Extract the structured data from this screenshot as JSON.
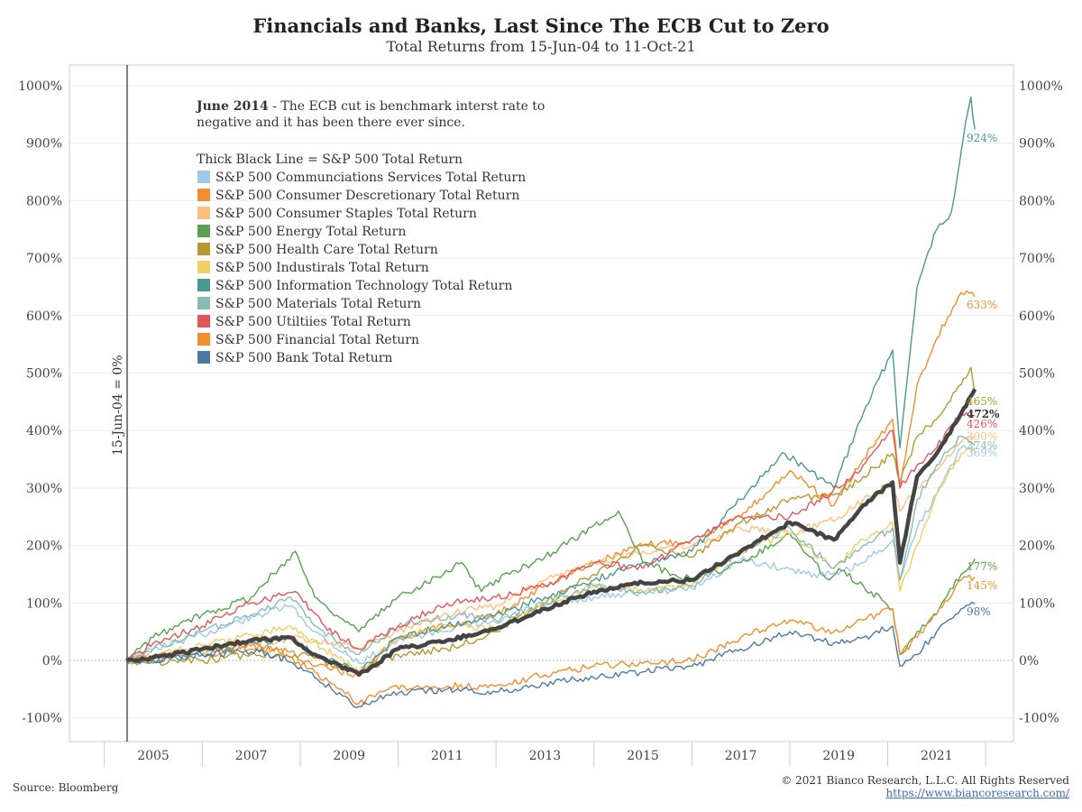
{
  "title": "Financials and Banks, Last Since The ECB Cut to Zero",
  "subtitle": "Total Returns from 15-Jun-04 to 11-Oct-21",
  "footer": {
    "source": "Source: Bloomberg",
    "copyright": "© 2021 Bianco Research, L.L.C. All Rights Reserved",
    "url": "https://www.biancoresearch.com/"
  },
  "annotation": {
    "bold": "June 2014",
    "line1": " - The ECB cut is benchmark interst rate to",
    "line2": "negative and it has been there ever since.",
    "vertical_label": "15-Jun-04 = 0%"
  },
  "legend_header": "Thick Black Line = S&P 500 Total Return",
  "chart_data": {
    "type": "line",
    "title": "Financials and Banks, Last Since The ECB Cut to Zero",
    "subtitle": "Total Returns from 15-Jun-04 to 11-Oct-21",
    "ylim": [
      -100,
      1000
    ],
    "xlim": [
      2004.0,
      2022.3
    ],
    "y_ticks": [
      -100,
      0,
      100,
      200,
      300,
      400,
      500,
      600,
      700,
      800,
      900,
      1000
    ],
    "y_tick_labels": [
      "-100%",
      "0%",
      "100%",
      "200%",
      "300%",
      "400%",
      "500%",
      "600%",
      "700%",
      "800%",
      "900%",
      "1000%"
    ],
    "x_ticks": [
      "2005",
      "2007",
      "2009",
      "2011",
      "2013",
      "2015",
      "2017",
      "2019",
      "2021"
    ],
    "x_tick_positions": [
      2005,
      2007,
      2009,
      2011,
      2013,
      2015,
      2017,
      2019,
      2021
    ],
    "grid": true,
    "legend_position": "top-left",
    "series": [
      {
        "name": "S&P 500 Communciations Services Total Return",
        "color": "#9ecae9",
        "end_label": "369%",
        "x": [
          2004.45,
          2005,
          2006,
          2007,
          2007.8,
          2008.3,
          2009.2,
          2010,
          2011.3,
          2012,
          2013,
          2014,
          2015,
          2016,
          2017,
          2017.9,
          2018.5,
          2019,
          2019.5,
          2020.1,
          2020.25,
          2020.6,
          2021,
          2021.5,
          2021.78
        ],
        "y": [
          0,
          20,
          45,
          75,
          95,
          50,
          -5,
          35,
          60,
          65,
          95,
          110,
          120,
          125,
          175,
          160,
          150,
          150,
          170,
          210,
          140,
          230,
          290,
          370,
          369
        ]
      },
      {
        "name": "S&P 500 Consumer Descretionary Total Return",
        "color": "#f28e2b",
        "end_label": "633%",
        "x": [
          2004.45,
          2005,
          2006,
          2007,
          2007.8,
          2008.3,
          2009.2,
          2010,
          2011,
          2012,
          2013,
          2014,
          2015,
          2016,
          2017,
          2018,
          2018.9,
          2019.5,
          2020.1,
          2020.25,
          2020.6,
          2021,
          2021.5,
          2021.78
        ],
        "y": [
          0,
          5,
          10,
          20,
          15,
          -10,
          -25,
          40,
          60,
          80,
          130,
          170,
          200,
          210,
          250,
          330,
          270,
          350,
          420,
          300,
          480,
          560,
          640,
          633
        ]
      },
      {
        "name": "S&P 500 Consumer Staples Total Return",
        "color": "#ffbe7d",
        "end_label": "390%",
        "x": [
          2004.45,
          2005,
          2006,
          2007,
          2008,
          2009.2,
          2010,
          2011,
          2012,
          2013,
          2014,
          2015,
          2016,
          2017,
          2018,
          2019,
          2019.5,
          2020.1,
          2020.25,
          2020.6,
          2021,
          2021.5,
          2021.78
        ],
        "y": [
          0,
          5,
          15,
          30,
          40,
          20,
          50,
          80,
          95,
          140,
          170,
          190,
          200,
          230,
          220,
          250,
          280,
          310,
          260,
          300,
          330,
          380,
          390
        ]
      },
      {
        "name": "S&P 500 Energy Total Return",
        "color": "#59a14f",
        "end_label": "177%",
        "x": [
          2004.45,
          2005,
          2006,
          2007,
          2007.9,
          2008.3,
          2009.2,
          2010,
          2011.3,
          2011.7,
          2012,
          2013,
          2014.5,
          2015,
          2016,
          2017,
          2018,
          2018.8,
          2019,
          2019.5,
          2020.1,
          2020.25,
          2020.6,
          2021,
          2021.5,
          2021.78
        ],
        "y": [
          0,
          40,
          80,
          110,
          190,
          110,
          50,
          110,
          170,
          120,
          140,
          180,
          260,
          170,
          140,
          170,
          220,
          140,
          160,
          130,
          90,
          10,
          50,
          80,
          150,
          177
        ]
      },
      {
        "name": "S&P 500 Health Care Total Return",
        "color": "#b6992d",
        "end_label": "465%",
        "x": [
          2004.45,
          2005,
          2006,
          2007,
          2008,
          2009.2,
          2010,
          2011,
          2012,
          2013,
          2014,
          2015,
          2016,
          2017,
          2018,
          2019,
          2019.5,
          2020.1,
          2020.25,
          2020.6,
          2021,
          2021.5,
          2021.7,
          2021.78
        ],
        "y": [
          0,
          -5,
          0,
          10,
          10,
          -20,
          10,
          20,
          50,
          100,
          150,
          200,
          180,
          240,
          280,
          290,
          320,
          360,
          310,
          390,
          420,
          480,
          510,
          465
        ]
      },
      {
        "name": "S&P 500 Industirals Total Return",
        "color": "#f1ce63",
        "end_label": "",
        "x": [
          2004.45,
          2005,
          2006,
          2007,
          2007.8,
          2008.5,
          2009.2,
          2010,
          2011,
          2012,
          2013,
          2014,
          2015,
          2016,
          2017,
          2018,
          2018.9,
          2019.5,
          2020.1,
          2020.25,
          2020.6,
          2021,
          2021.5,
          2021.78
        ],
        "y": [
          0,
          10,
          25,
          45,
          60,
          20,
          -20,
          40,
          60,
          55,
          100,
          130,
          120,
          130,
          190,
          220,
          160,
          210,
          240,
          120,
          200,
          290,
          360,
          370
        ]
      },
      {
        "name": "S&P 500 Information Technology Total Return",
        "color": "#499894",
        "end_label": "924%",
        "x": [
          2004.45,
          2005,
          2006,
          2007,
          2007.8,
          2008.3,
          2009.2,
          2010,
          2011,
          2012,
          2013,
          2014,
          2015,
          2016,
          2017,
          2017.9,
          2018.9,
          2019.5,
          2020.1,
          2020.25,
          2020.6,
          2021,
          2021.3,
          2021.6,
          2021.7,
          2021.78
        ],
        "y": [
          0,
          0,
          10,
          30,
          40,
          10,
          -20,
          40,
          60,
          80,
          110,
          140,
          170,
          190,
          280,
          360,
          300,
          430,
          540,
          370,
          650,
          750,
          780,
          940,
          980,
          924
        ]
      },
      {
        "name": "S&P 500 Materials Total Return",
        "color": "#86bcb6",
        "end_label": "374%",
        "x": [
          2004.45,
          2005,
          2006,
          2007,
          2007.8,
          2008.3,
          2009.2,
          2010,
          2011.3,
          2012,
          2013,
          2014,
          2015,
          2016,
          2017,
          2018,
          2018.9,
          2019.5,
          2020.1,
          2020.25,
          2020.6,
          2021,
          2021.5,
          2021.78
        ],
        "y": [
          0,
          20,
          50,
          80,
          110,
          60,
          10,
          60,
          80,
          70,
          100,
          130,
          120,
          130,
          190,
          230,
          160,
          200,
          230,
          140,
          280,
          340,
          390,
          374
        ]
      },
      {
        "name": "S&P 500 Utiltiies Total Return",
        "color": "#e15759",
        "end_label": "426%",
        "x": [
          2004.45,
          2005,
          2006,
          2007,
          2007.9,
          2008.5,
          2009.2,
          2010,
          2011,
          2012,
          2013,
          2014,
          2015,
          2016,
          2017,
          2018,
          2019,
          2019.5,
          2020.1,
          2020.25,
          2020.6,
          2021,
          2021.5,
          2021.78
        ],
        "y": [
          0,
          30,
          60,
          100,
          120,
          60,
          20,
          60,
          100,
          110,
          130,
          170,
          160,
          210,
          250,
          250,
          300,
          340,
          400,
          300,
          340,
          370,
          430,
          426
        ]
      },
      {
        "name": "S&P 500 Financial Total Return",
        "color": "#f28e2b",
        "end_label": "145%",
        "x": [
          2004.45,
          2005,
          2006,
          2007,
          2007.5,
          2008.3,
          2009.2,
          2009.8,
          2011,
          2012,
          2013,
          2014,
          2015,
          2016,
          2017,
          2018,
          2018.9,
          2019.5,
          2020.1,
          2020.25,
          2020.6,
          2021,
          2021.5,
          2021.78
        ],
        "y": [
          0,
          5,
          20,
          25,
          20,
          -20,
          -75,
          -50,
          -45,
          -45,
          -25,
          -10,
          -5,
          0,
          40,
          70,
          50,
          70,
          90,
          10,
          40,
          80,
          140,
          145
        ]
      },
      {
        "name": "S&P 500 Bank Total Return",
        "color": "#4e79a7",
        "end_label": "98%",
        "x": [
          2004.45,
          2005,
          2006,
          2007,
          2007.5,
          2008.3,
          2009.2,
          2009.8,
          2011,
          2012,
          2013,
          2014,
          2015,
          2016,
          2017,
          2018,
          2018.9,
          2019.5,
          2020.1,
          2020.25,
          2020.6,
          2021,
          2021.5,
          2021.78
        ],
        "y": [
          0,
          0,
          10,
          15,
          10,
          -30,
          -80,
          -60,
          -50,
          -55,
          -40,
          -30,
          -20,
          -10,
          20,
          50,
          30,
          40,
          60,
          -10,
          10,
          50,
          90,
          98
        ]
      },
      {
        "name": "S&P 500 Total Return",
        "color": "#444444",
        "end_label": "472%",
        "thick": true,
        "x": [
          2004.45,
          2005,
          2006,
          2007,
          2007.8,
          2008.3,
          2009.2,
          2010,
          2011,
          2012,
          2013,
          2014,
          2015,
          2016,
          2017,
          2018,
          2018.9,
          2019.5,
          2020.1,
          2020.25,
          2020.6,
          2021,
          2021.5,
          2021.7,
          2021.78
        ],
        "y": [
          0,
          5,
          20,
          35,
          40,
          10,
          -25,
          20,
          35,
          55,
          90,
          120,
          135,
          140,
          190,
          240,
          210,
          270,
          310,
          170,
          320,
          360,
          430,
          460,
          472
        ]
      }
    ]
  }
}
